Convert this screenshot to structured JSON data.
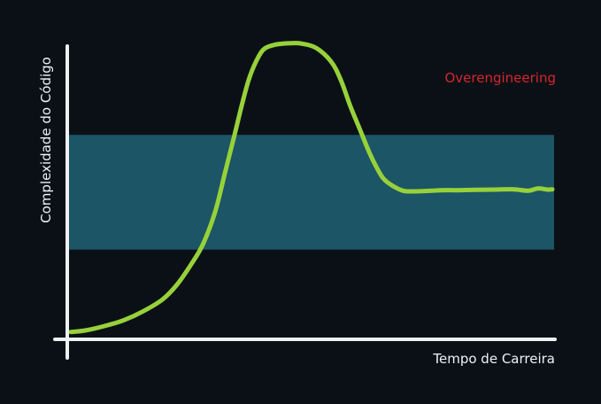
{
  "chart_data": {
    "type": "line",
    "title": "",
    "xlabel": "Tempo de Carreira",
    "ylabel": "Complexidade do Código",
    "annotation": "Overengineering",
    "xlim": [
      0,
      100
    ],
    "ylim": [
      0,
      100
    ],
    "grid": false,
    "band": {
      "y_low": 29,
      "y_high": 68
    },
    "series": [
      {
        "x": [
          0,
          3,
          7,
          11,
          15,
          19,
          22,
          25,
          27.5,
          30,
          32,
          34,
          35.5,
          37,
          38.5,
          40,
          42,
          44,
          46,
          48,
          51,
          54,
          56,
          58,
          60,
          62,
          63.5,
          65,
          67,
          69,
          71,
          73,
          75,
          77,
          80,
          84,
          88,
          92,
          95,
          97,
          99,
          100
        ],
        "y": [
          1,
          1.5,
          3,
          5,
          8,
          12,
          17,
          24,
          31,
          42,
          55,
          68,
          78,
          87,
          93,
          97,
          98.5,
          99,
          99.2,
          99,
          97.5,
          93,
          87,
          78,
          70,
          62,
          57,
          53,
          50.5,
          49,
          48.8,
          48.9,
          49,
          49.2,
          49.2,
          49.3,
          49.4,
          49.5,
          49,
          49.8,
          49.4,
          49.5
        ]
      }
    ],
    "colors": {
      "background": "#0b1017",
      "band": "#1b5566",
      "line": "#97d13a",
      "axis": "#eef2f5",
      "annotation": "#d5262d"
    }
  }
}
